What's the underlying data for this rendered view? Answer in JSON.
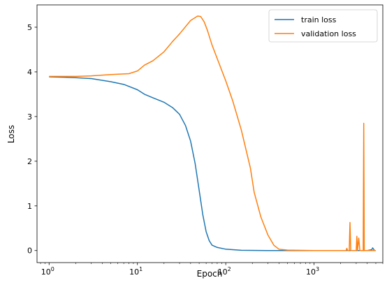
{
  "chart_data": {
    "type": "line",
    "xscale": "log",
    "xlim": [
      0.73,
      6000
    ],
    "ylim": [
      -0.27,
      5.5
    ],
    "xlabel": "Epoch",
    "ylabel": "Loss",
    "x_ticks": [
      {
        "value": 1,
        "base": "10",
        "exp": "0"
      },
      {
        "value": 10,
        "base": "10",
        "exp": "1"
      },
      {
        "value": 100,
        "base": "10",
        "exp": "2"
      },
      {
        "value": 1000,
        "base": "10",
        "exp": "3"
      }
    ],
    "y_ticks": [
      {
        "value": 0,
        "label": "0"
      },
      {
        "value": 1,
        "label": "1"
      },
      {
        "value": 2,
        "label": "2"
      },
      {
        "value": 3,
        "label": "3"
      },
      {
        "value": 4,
        "label": "4"
      },
      {
        "value": 5,
        "label": "5"
      }
    ],
    "legend": "top-right",
    "series": [
      {
        "name": "train loss",
        "color": "#1f77b4",
        "points": [
          [
            1,
            3.89
          ],
          [
            1.5,
            3.88
          ],
          [
            2,
            3.87
          ],
          [
            3,
            3.85
          ],
          [
            5,
            3.78
          ],
          [
            7,
            3.72
          ],
          [
            10,
            3.6
          ],
          [
            12,
            3.5
          ],
          [
            15,
            3.42
          ],
          [
            20,
            3.32
          ],
          [
            25,
            3.2
          ],
          [
            30,
            3.05
          ],
          [
            35,
            2.8
          ],
          [
            40,
            2.45
          ],
          [
            45,
            1.95
          ],
          [
            50,
            1.35
          ],
          [
            55,
            0.8
          ],
          [
            60,
            0.42
          ],
          [
            65,
            0.22
          ],
          [
            70,
            0.12
          ],
          [
            80,
            0.07
          ],
          [
            100,
            0.03
          ],
          [
            150,
            0.005
          ],
          [
            300,
            0.0
          ],
          [
            1000,
            0.0
          ],
          [
            4000,
            0.0
          ],
          [
            4500,
            0.02
          ],
          [
            4600,
            0.06
          ],
          [
            4800,
            0.01
          ]
        ]
      },
      {
        "name": "validation loss",
        "color": "#ff7f0e",
        "points": [
          [
            1,
            3.9
          ],
          [
            2,
            3.9
          ],
          [
            3,
            3.91
          ],
          [
            5,
            3.94
          ],
          [
            8,
            3.96
          ],
          [
            10,
            4.02
          ],
          [
            12,
            4.15
          ],
          [
            15,
            4.25
          ],
          [
            20,
            4.45
          ],
          [
            25,
            4.68
          ],
          [
            30,
            4.85
          ],
          [
            40,
            5.15
          ],
          [
            48,
            5.25
          ],
          [
            52,
            5.24
          ],
          [
            57,
            5.12
          ],
          [
            62,
            4.93
          ],
          [
            70,
            4.6
          ],
          [
            80,
            4.3
          ],
          [
            100,
            3.8
          ],
          [
            120,
            3.35
          ],
          [
            150,
            2.7
          ],
          [
            190,
            1.85
          ],
          [
            210,
            1.3
          ],
          [
            250,
            0.75
          ],
          [
            300,
            0.35
          ],
          [
            350,
            0.12
          ],
          [
            400,
            0.03
          ],
          [
            500,
            0.01
          ],
          [
            1000,
            0.0
          ],
          [
            2300,
            0.0
          ],
          [
            2350,
            0.05
          ],
          [
            2400,
            0.0
          ],
          [
            2500,
            0.0
          ],
          [
            2550,
            0.63
          ],
          [
            2600,
            0.0
          ],
          [
            3000,
            0.0
          ],
          [
            3050,
            0.32
          ],
          [
            3100,
            0.0
          ],
          [
            3200,
            0.28
          ],
          [
            3300,
            0.0
          ],
          [
            3600,
            0.0
          ],
          [
            3650,
            2.85
          ],
          [
            3700,
            0.0
          ],
          [
            4000,
            0.0
          ],
          [
            4500,
            0.0
          ],
          [
            5000,
            0.0
          ]
        ]
      }
    ]
  }
}
